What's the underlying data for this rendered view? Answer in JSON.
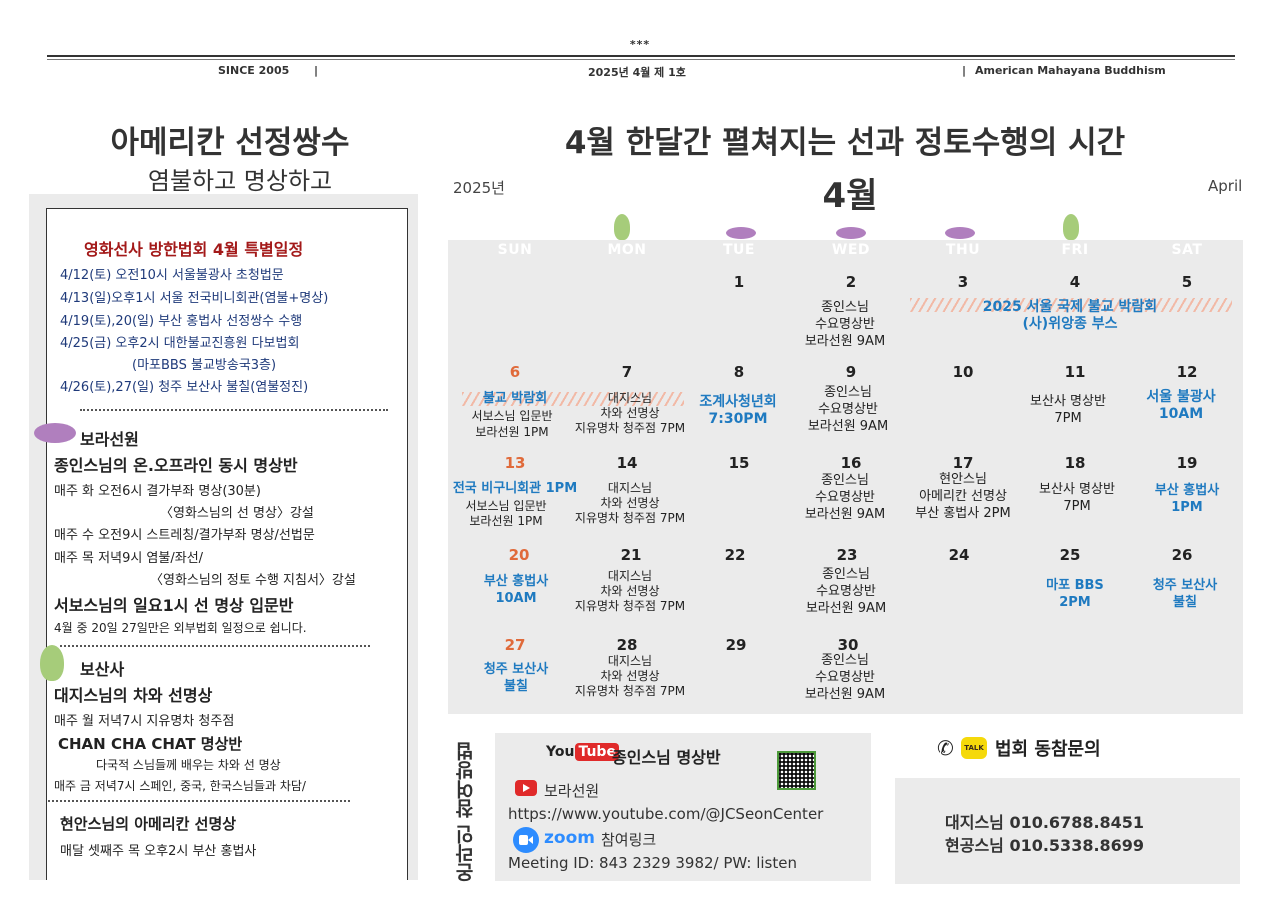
{
  "masthead": {
    "stars": "***",
    "since": "SINCE 2005",
    "sep": "|",
    "issue": "2025년 4월 제 1호",
    "org": "American Mahayana Buddhism"
  },
  "left": {
    "title": "아메리칸 선정쌍수",
    "subtitle": "염불하고 명상하고",
    "special": {
      "title": "영화선사 방한법회 4월 특별일정",
      "lines": [
        "4/12(토) 오전10시 서울불광사 초청법문",
        "4/13(일)오후1시 서울 전국비니회관(염불+명상)",
        "4/19(토),20(일) 부산 홍법사 선정쌍수 수행",
        "4/25(금) 오후2시 대한불교진흥원 다보법회",
        "(마포BBS 불교방송국3층)",
        "4/26(토),27(일) 청주 보산사 불칠(염불정진)"
      ]
    },
    "bora": {
      "heading": "보라선원",
      "program1": "종인스님의 온.오프라인 동시 명상반",
      "line1": "매주 화 오전6시 결가부좌 명상(30분)",
      "line2": "〈영화스님의 선 명상〉강설",
      "line3": "매주 수 오전9시 스트레칭/결가부좌 명상/선법문",
      "line4": "매주 목 저녁9시 염불/좌선/",
      "line5": "〈영화스님의 정토 수행 지침서〉강설",
      "program2": "서보스님의 일요1시 선 명상 입문반",
      "note": "4월 중 20일 27일만은 외부법회 일정으로 쉽니다."
    },
    "bosan": {
      "heading": "보산사",
      "program1": "대지스님의 차와 선명상",
      "line1": "매주 월 저녁7시 지유명차 청주점",
      "program2": "CHAN CHA CHAT 명상반",
      "line2": "다국적 스님들께 배우는 차와 선 명상",
      "line3": "매주 금 저녁7시 스페인, 중국, 한국스님들과 차담/"
    },
    "hyunan": {
      "program": "현안스님의 아메리칸 선명상",
      "line": "매달 셋째주 목 오후2시 부산 홍법사"
    }
  },
  "calendar": {
    "headline": "4월 한달간 펼쳐지는 선과 정토수행의 시간",
    "year": "2025년",
    "month": "4월",
    "month_en": "April",
    "weekdays": [
      "SUN",
      "MON",
      "TUE",
      "WED",
      "THU",
      "FRI",
      "SAT"
    ],
    "days": {
      "d1": "1",
      "d2": "2",
      "d3": "3",
      "d4": "4",
      "d5": "5",
      "d6": "6",
      "d7": "7",
      "d8": "8",
      "d9": "9",
      "d10": "10",
      "d11": "11",
      "d12": "12",
      "d13": "13",
      "d14": "14",
      "d15": "15",
      "d16": "16",
      "d17": "17",
      "d18": "18",
      "d19": "19",
      "d20": "20",
      "d21": "21",
      "d22": "22",
      "d23": "23",
      "d24": "24",
      "d25": "25",
      "d26": "26",
      "d27": "27",
      "d28": "28",
      "d29": "29",
      "d30": "30"
    },
    "events": {
      "wed_l1": "종인스님",
      "wed_l2": "수요명상반",
      "wed_l3": "보라선원 9AM",
      "expo": "2025 서울 국제 불교 박람회",
      "expo2": "(사)위앙종 부스",
      "sun6_a": "불교 박람회",
      "sun6_b": "서보스님 입문반",
      "sun6_c": "보라선원 1PM",
      "mon_l1": "대지스님",
      "mon_l2": "차와 선명상",
      "mon_l3": "지유명차 청주점 7PM",
      "tue8_a": "조계사청년회",
      "tue8_b": "7:30PM",
      "fri11_a": "보산사 명상반",
      "fri11_b": "7PM",
      "sat12_a": "서울 불광사",
      "sat12_b": "10AM",
      "sun13_a": "전국 비구니회관 1PM",
      "sun13_b": "서보스님 입문반",
      "sun13_c": "보라선원 1PM",
      "thu17_a": "현안스님",
      "thu17_b": "아메리칸 선명상",
      "thu17_c": "부산 홍법사 2PM",
      "fri18_a": "보산사 명상반",
      "fri18_b": "7PM",
      "sat19_a": "부산 홍법사",
      "sat19_b": "1PM",
      "sun20_a": "부산 홍법사",
      "sun20_b": "10AM",
      "fri25_a": "마포 BBS",
      "fri25_b": "2PM",
      "sat26_a": "청주 보산사",
      "sat26_b": "불칠",
      "sun27_a": "청주 보산사",
      "sun27_b": "불칠"
    }
  },
  "online": {
    "vertical_label": "온라인 참여방법",
    "yt_you": "You",
    "yt_tube": "Tube",
    "title": "종인스님 명상반",
    "channel": "보라선원",
    "url": "https://www.youtube.com/@JCSeonCenter",
    "zoom": "zoom",
    "zoom_label": "참여링크",
    "meeting": "Meeting ID: 843 2329 3982/ PW: listen"
  },
  "contact": {
    "talk": "TALK",
    "title": "법회 동참문의",
    "line1": "대지스님 010.6788.8451",
    "line2": "현공스님 010.5338.8699"
  },
  "colors": {
    "schedule_title": "#a31919",
    "schedule_lines": "#1f3a7a",
    "calendar_blue": "#1f7ac0",
    "sunday_red": "#e06a3a",
    "panel_bg": "#ebebeb",
    "leaf_green": "#a6cc7a",
    "leaf_purple": "#b07fbe"
  },
  "icons": [
    "youtube-icon",
    "zoom-icon",
    "qr-code-icon",
    "phone-icon",
    "kakaotalk-icon",
    "leaf-icon"
  ]
}
